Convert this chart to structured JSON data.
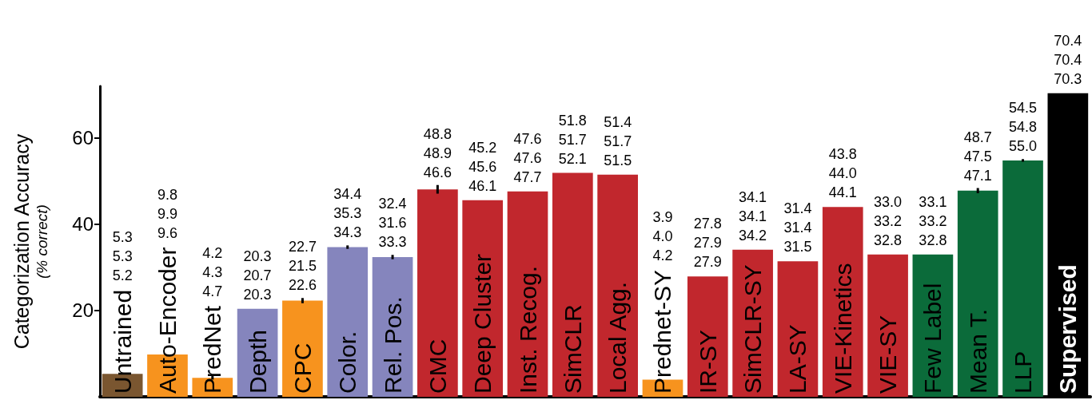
{
  "chart_data": {
    "type": "bar",
    "ylabel": "Categorization Accuracy\n(% correct)",
    "categories": [
      "Untrained",
      "Auto-Encoder",
      "PredNet",
      "Depth",
      "CPC",
      "Color.",
      "Rel. Pos.",
      "CMC",
      "Deep Cluster",
      "Inst. Recog.",
      "SimCLR",
      "Local Agg.",
      "Prednet-SY",
      "IR-SY",
      "SimCLR-SY",
      "LA-SY",
      "VIE-Kinetics",
      "VIE-SY",
      "Few Label",
      "Mean T.",
      "LLP",
      "Supervised"
    ],
    "values": [
      5.3,
      9.8,
      4.4,
      20.4,
      22.3,
      34.7,
      32.4,
      48.1,
      45.6,
      47.6,
      51.9,
      51.5,
      4.0,
      27.9,
      34.1,
      31.4,
      44.0,
      33.0,
      33.0,
      47.8,
      54.8,
      70.4
    ],
    "colors": [
      "#7a5630",
      "#f7931e",
      "#f7931e",
      "#8585bd",
      "#f7931e",
      "#8585bd",
      "#8585bd",
      "#c1272d",
      "#c1272d",
      "#c1272d",
      "#c1272d",
      "#c1272d",
      "#f7931e",
      "#c1272d",
      "#c1272d",
      "#c1272d",
      "#c1272d",
      "#c1272d",
      "#0b6b3a",
      "#0b6b3a",
      "#0b6b3a",
      "#000000"
    ],
    "errors": [
      null,
      null,
      0.4,
      null,
      0.6,
      0.4,
      0.5,
      1.0,
      null,
      null,
      null,
      null,
      null,
      null,
      null,
      null,
      null,
      null,
      null,
      0.6,
      0.3,
      null
    ],
    "annotations": [
      "5.3\n5.3\n5.2",
      "9.8\n9.9\n9.6",
      "4.2\n4.3\n4.7",
      {
        "text": "20.3\n20.7\n20.3",
        "x": "Depth",
        "y": 20.4
      },
      {
        "text": "22.7\n21.5\n22.6",
        "x": "CPC",
        "y": 22.3
      },
      {
        "text": "34.4\n35.3\n34.3",
        "x": "Color.",
        "y": 34.7
      },
      {
        "text": "32.4\n31.6\n33.3",
        "x": "Rel. Pos.",
        "y": 32.4
      },
      {
        "text": "48.8\n48.9\n46.6",
        "x": "CMC",
        "y": 48.1
      },
      {
        "text": "45.2\n45.6\n46.1",
        "x": "Deep Cluster",
        "y": 45.6
      },
      {
        "text": "47.6\n47.6\n47.7",
        "x": "Inst. Recog.",
        "y": 47.6
      },
      {
        "text": "51.8\n51.7\n52.1",
        "x": "SimCLR",
        "y": 51.9
      },
      {
        "text": "51.4\n51.7\n51.5",
        "x": "Local Agg.",
        "y": 51.5
      },
      "3.9\n4.0\n4.2",
      {
        "text": "27.8\n27.9\n27.9",
        "x": "IR-SY",
        "y": 27.9
      },
      {
        "text": "34.1\n34.1\n34.2",
        "x": "SimCLR-SY",
        "y": 34.1
      },
      {
        "text": "31.4\n31.4\n31.5",
        "x": "LA-SY",
        "y": 31.4
      },
      {
        "text": "43.8\n44.0\n44.1",
        "x": "VIE-Kinetics",
        "y": 44.0
      },
      {
        "text": "33.0\n33.2\n32.8",
        "x": "VIE-SY",
        "y": 33.0
      },
      {
        "text": "33.1\n33.2\n32.8",
        "x": "Few Label",
        "y": 33.0
      },
      {
        "text": "48.7\n47.5\n47.1",
        "x": "Mean T.",
        "y": 47.8
      },
      {
        "text": "54.5\n54.8\n55.0",
        "x": "LLP",
        "y": 54.8
      },
      {
        "text": "70.4\n70.4\n70.3",
        "x": "Supervised",
        "y": 70.4
      }
    ],
    "ylim": [
      0,
      72
    ],
    "yticks": [
      20,
      40,
      60
    ],
    "grid": false
  }
}
